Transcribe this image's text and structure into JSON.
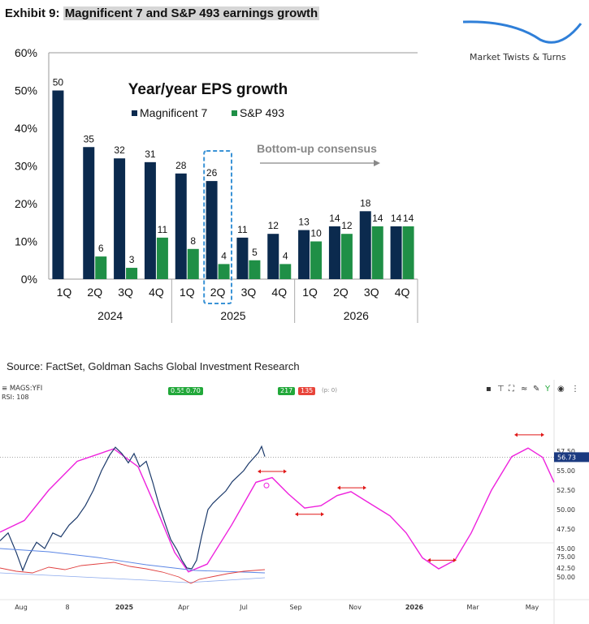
{
  "header": {
    "exhibit_prefix": "Exhibit 9:",
    "exhibit_title": "Magnificent 7 and S&P 493 earnings growth"
  },
  "brand": {
    "name": "Market Twists & Turns"
  },
  "source": "Source: FactSet, Goldman Sachs Global Investment Research",
  "tradingview": {
    "symbol": "MAGS:YFI",
    "rsi_label": "RSI: 108",
    "badge_a": "0.55",
    "badge_b": "0.70",
    "badge_c": "217",
    "badge_d": "135",
    "p_count": "(p: 0)",
    "price_label": "56.73",
    "toolbar_icons": [
      "save-icon",
      "pin-icon",
      "fullscreen-icon",
      "compare-icon",
      "draw-icon",
      "indicator-icon",
      "eye-icon",
      "more-icon"
    ],
    "colors": {
      "price_line": "#1c3a6b",
      "cycle": "#ee22dd",
      "arrows": "#e01818",
      "rsi_red": "#e04040",
      "rsi_blue": "#5b86e5",
      "price_badge": "#1b3a80",
      "badge_green": "#22a83a",
      "badge_red": "#e8443a"
    }
  },
  "chart_data": [
    {
      "type": "bar",
      "title": "Year/year EPS growth",
      "categories": [
        "1Q",
        "2Q",
        "3Q",
        "4Q",
        "1Q",
        "2Q",
        "3Q",
        "4Q",
        "1Q",
        "2Q",
        "3Q",
        "4Q"
      ],
      "groups": [
        {
          "label": "2024",
          "span": 4
        },
        {
          "label": "2025",
          "span": 4
        },
        {
          "label": "2026",
          "span": 4
        }
      ],
      "series": [
        {
          "name": "Magnificent 7",
          "color": "#0b2a4e",
          "values": [
            50,
            35,
            32,
            31,
            28,
            26,
            11,
            12,
            13,
            14,
            18,
            14
          ]
        },
        {
          "name": "S&P 493",
          "color": "#1f8f46",
          "values": [
            null,
            6,
            3,
            11,
            8,
            4,
            5,
            4,
            10,
            12,
            14,
            14
          ]
        }
      ],
      "data_labels": {
        "Magnificent 7": [
          "50",
          "35",
          "32",
          "31",
          "28",
          "26",
          "11",
          "12",
          "13",
          "14",
          "18",
          "14"
        ],
        "S&P 493": [
          "",
          "6",
          "3",
          "11",
          "8",
          "4",
          "5",
          "4",
          "10",
          "12",
          "14",
          "14"
        ]
      },
      "y_ticks": [
        "0%",
        "10%",
        "20%",
        "30%",
        "40%",
        "50%",
        "60%"
      ],
      "ylim": [
        0,
        60
      ],
      "annotation": "Bottom-up consensus",
      "highlight_category_index": 5,
      "legend_position": "top-center"
    },
    {
      "type": "line",
      "title": "",
      "x_ticks": [
        "Aug",
        "8",
        "2025",
        "Apr",
        "Jul",
        "Sep",
        "Nov",
        "2026",
        "Mar",
        "May"
      ],
      "y_ticks_main": [
        "42.50",
        "45.00",
        "47.50",
        "50.00",
        "52.50",
        "55.00",
        "57.50"
      ],
      "y_ticks_rsi": [
        "50.00",
        "75.00"
      ],
      "last_price": 56.73
    }
  ]
}
